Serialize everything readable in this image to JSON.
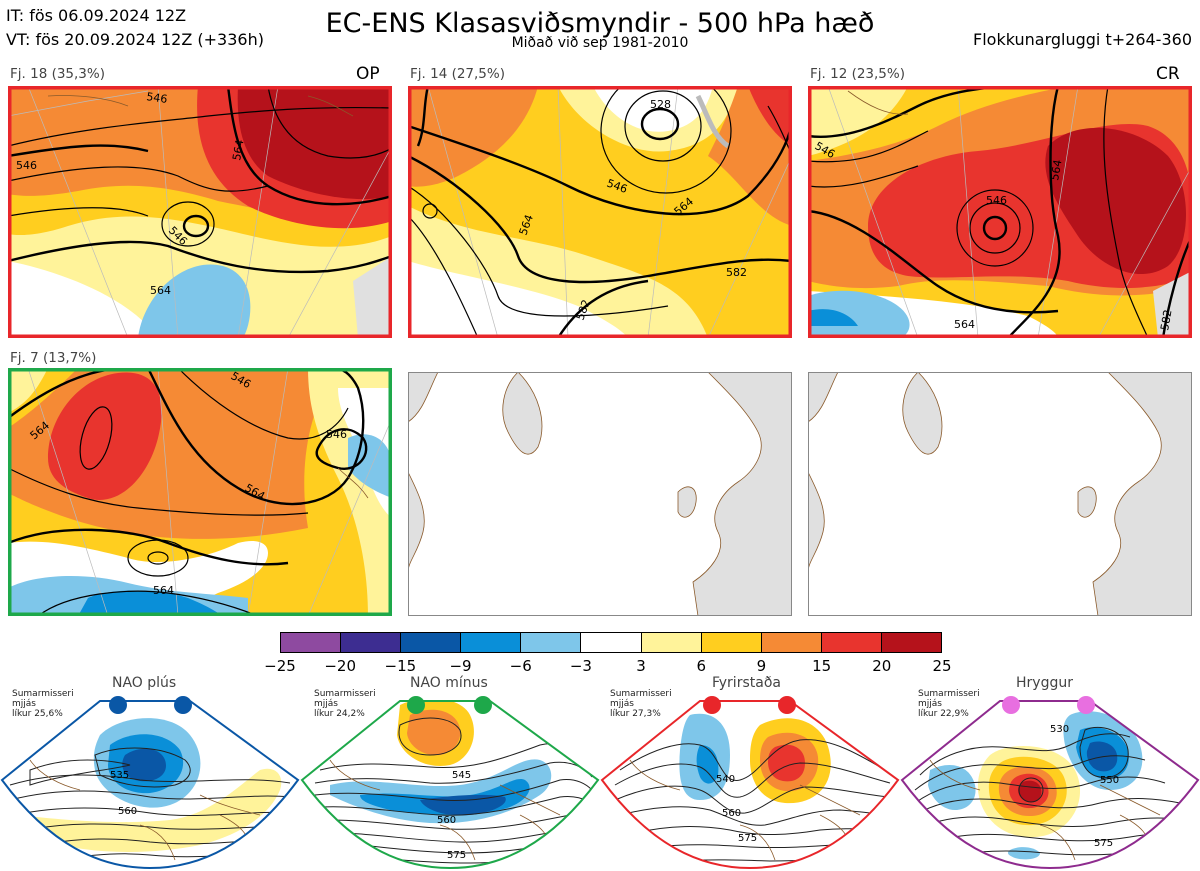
{
  "header": {
    "init_time": "IT: fös 06.09.2024 12Z",
    "valid_time": "VT: fös 20.09.2024 12Z  (+336h)",
    "title": "EC-ENS Klasasviðsmyndir - 500 hPa hæð",
    "subtitle": "Miðað við sep 1981-2010",
    "window": "Flokkunargluggi t+264-360"
  },
  "panels": [
    {
      "label": "Fj. 18 (35,3%)",
      "tag": "OP",
      "border": "#e8262a",
      "contours": [
        "546",
        "546",
        "564",
        "546",
        "564"
      ]
    },
    {
      "label": "Fj. 14 (27,5%)",
      "tag": "",
      "border": "#e8262a",
      "contours": [
        "528",
        "546",
        "564",
        "564",
        "582",
        "582"
      ]
    },
    {
      "label": "Fj. 12 (23,5%)",
      "tag": "CR",
      "border": "#e8262a",
      "contours": [
        "546",
        "546",
        "564",
        "564",
        "582"
      ]
    },
    {
      "label": "Fj. 7 (13,7%)",
      "tag": "",
      "border": "#1ea84a",
      "contours": [
        "564",
        "546",
        "546",
        "564",
        "564"
      ]
    },
    {
      "label": "",
      "tag": "",
      "border": "#888888"
    },
    {
      "label": "",
      "tag": "",
      "border": "#888888"
    }
  ],
  "colorbar": {
    "colors": [
      "#8e4aa0",
      "#3d2d91",
      "#0a57a6",
      "#0a8fd8",
      "#7ec6ea",
      "#ffffff",
      "#fff39a",
      "#ffce1f",
      "#f58a35",
      "#e8342e",
      "#b5121b"
    ],
    "ticks": [
      "−25",
      "−20",
      "−15",
      "−9",
      "−6",
      "−3",
      "3",
      "6",
      "9",
      "15",
      "20",
      "25"
    ]
  },
  "regimes": [
    {
      "title": "NAO plús",
      "note": [
        "Sumarmisseri",
        "mjjás",
        "líkur 25,6%"
      ],
      "color": "#0a57a6",
      "contours": [
        "535",
        "560"
      ]
    },
    {
      "title": "NAO mínus",
      "note": [
        "Sumarmisseri",
        "mjjás",
        "líkur 24,2%"
      ],
      "color": "#1ea84a",
      "contours": [
        "545",
        "560",
        "575"
      ]
    },
    {
      "title": "Fyrirstaða",
      "note": [
        "Sumarmisseri",
        "mjjás",
        "líkur 27,3%"
      ],
      "color": "#e8262a",
      "contours": [
        "540",
        "560",
        "575"
      ]
    },
    {
      "title": "Hryggur",
      "note": [
        "Sumarmisseri",
        "mjjás",
        "líkur 22,9%"
      ],
      "color": "#e86fe0",
      "border": "#8e2b8e",
      "contours": [
        "530",
        "550",
        "575"
      ]
    }
  ]
}
